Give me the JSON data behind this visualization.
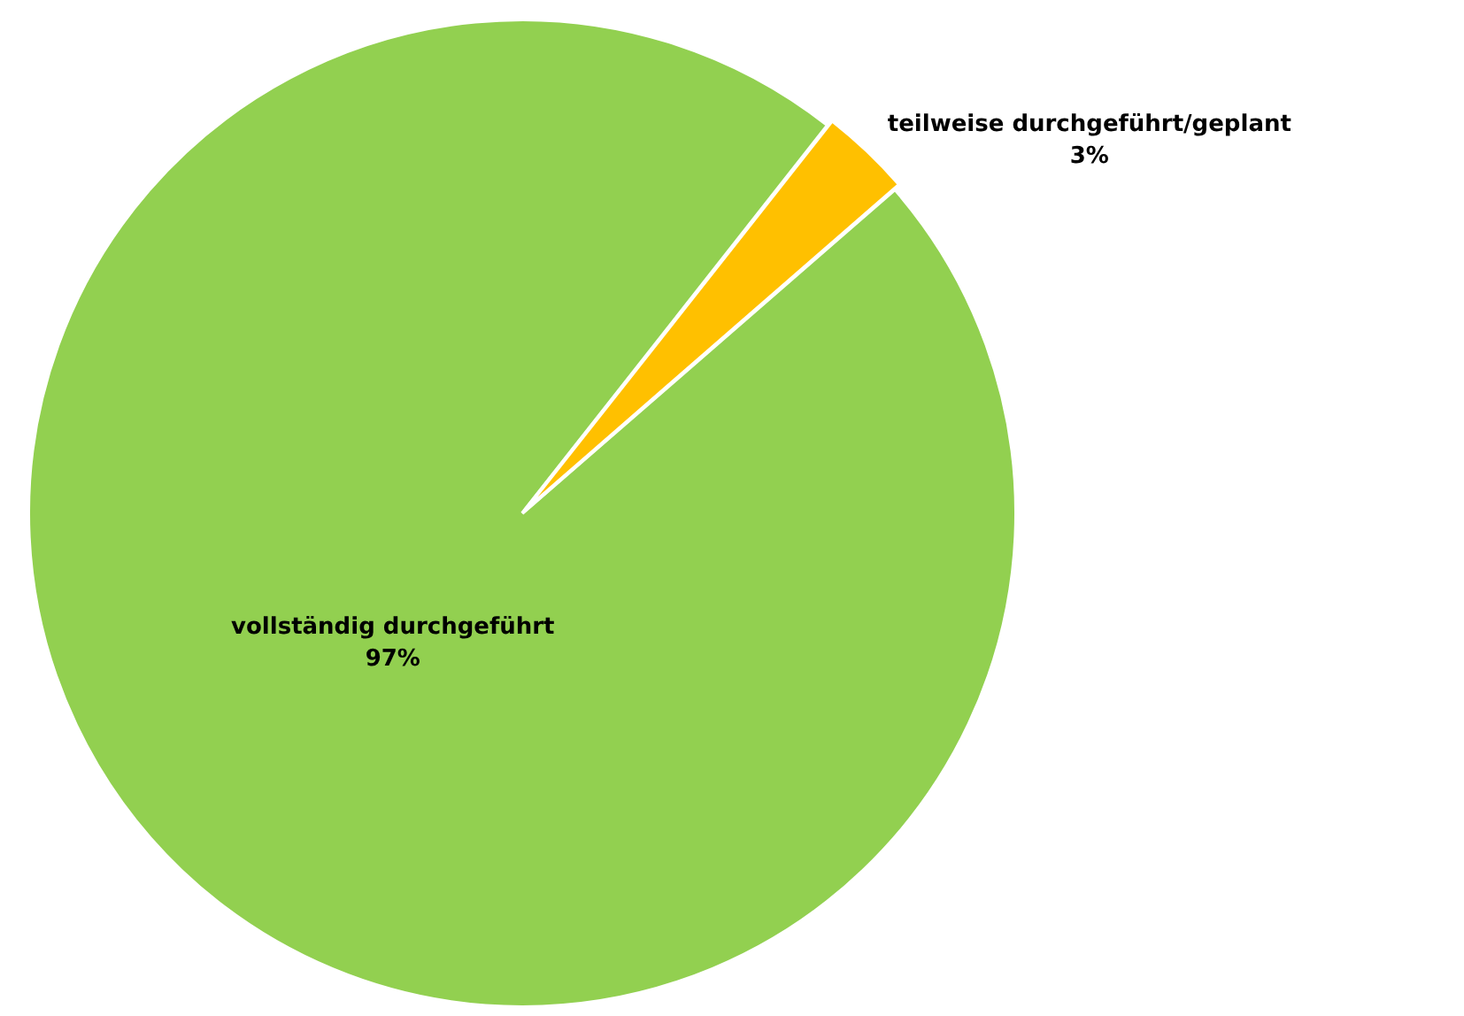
{
  "chart_data": {
    "type": "pie",
    "categories": [
      "vollständig durchgeführt",
      "teilweise durchgeführt/geplant"
    ],
    "values": [
      97,
      3
    ],
    "colors": [
      "#92d050",
      "#ffc000"
    ],
    "value_labels": [
      "97%",
      "3%"
    ],
    "legend": false
  }
}
